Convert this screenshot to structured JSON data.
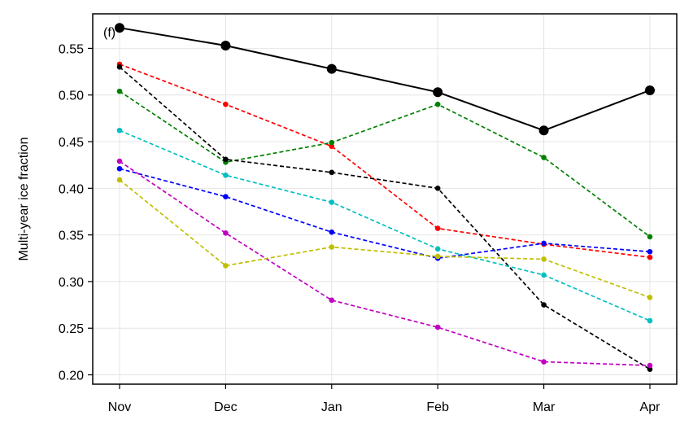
{
  "chart_data": {
    "type": "line",
    "panel_label": "(f)",
    "title": "",
    "xlabel": "",
    "ylabel": "Multi-year ice fraction",
    "categories": [
      "Nov",
      "Dec",
      "Jan",
      "Feb",
      "Mar",
      "Apr"
    ],
    "ylim": [
      0.19,
      0.587
    ],
    "yticks": [
      0.2,
      0.25,
      0.3,
      0.35,
      0.4,
      0.45,
      0.5,
      0.55
    ],
    "ytick_labels": [
      "0.20",
      "0.25",
      "0.30",
      "0.35",
      "0.40",
      "0.45",
      "0.50",
      "0.55"
    ],
    "grid": true,
    "legend": "none",
    "series": [
      {
        "color": "#000000",
        "style": "solid",
        "marker": "large",
        "values": [
          0.572,
          0.553,
          0.528,
          0.503,
          0.462,
          0.505
        ]
      },
      {
        "color": "#ff0000",
        "style": "dashed",
        "marker": "small",
        "values": [
          0.533,
          0.49,
          0.445,
          0.357,
          0.34,
          0.326
        ]
      },
      {
        "color": "#008000",
        "style": "dashed",
        "marker": "small",
        "values": [
          0.504,
          0.428,
          0.449,
          0.49,
          0.433,
          0.348
        ]
      },
      {
        "color": "#000000",
        "style": "dashed",
        "marker": "small",
        "values": [
          0.53,
          0.431,
          0.417,
          0.4,
          0.275,
          0.206
        ]
      },
      {
        "color": "#00bfbf",
        "style": "dashed",
        "marker": "small",
        "values": [
          0.462,
          0.414,
          0.385,
          0.335,
          0.307,
          0.258
        ]
      },
      {
        "color": "#0000ff",
        "style": "dashed",
        "marker": "small",
        "values": [
          0.421,
          0.391,
          0.353,
          0.325,
          0.341,
          0.332
        ]
      },
      {
        "color": "#bf00bf",
        "style": "dashed",
        "marker": "small",
        "values": [
          0.429,
          0.352,
          0.28,
          0.251,
          0.214,
          0.21
        ]
      },
      {
        "color": "#bfbf00",
        "style": "dashed",
        "marker": "small",
        "values": [
          0.409,
          0.317,
          0.337,
          0.327,
          0.324,
          0.283
        ]
      }
    ]
  }
}
